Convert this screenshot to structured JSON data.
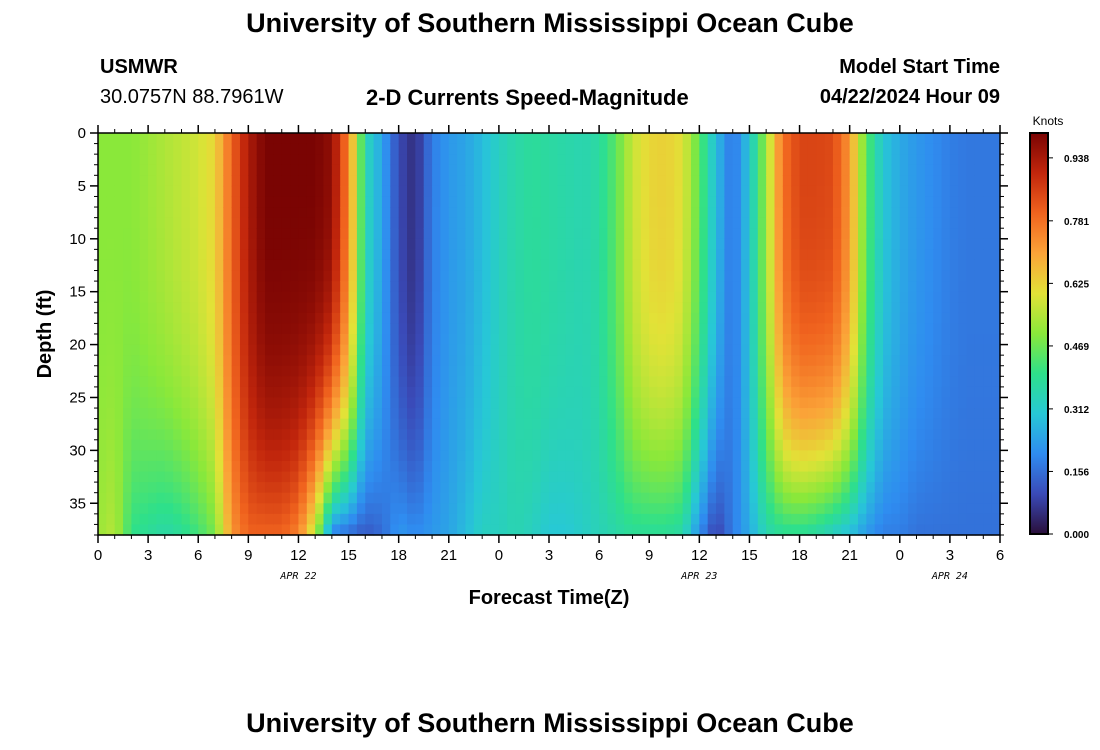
{
  "header": {
    "title": "University of Southern Mississippi Ocean Cube",
    "station": "USMWR",
    "coords": "30.0757N  88.7961W",
    "plot_title": "2-D Currents Speed-Magnitude",
    "model_label": "Model Start Time",
    "model_time": "04/22/2024 Hour 09"
  },
  "footer": {
    "title": "University of Southern Mississippi Ocean Cube"
  },
  "colors": {
    "colormap": [
      "#2a0f3a",
      "#3a4ab8",
      "#2f8cf0",
      "#27c8d6",
      "#2ee08a",
      "#8ae83a",
      "#e2e237",
      "#fba338",
      "#f0631e",
      "#c2260c",
      "#7a0403"
    ]
  },
  "chart_data": {
    "type": "heatmap",
    "xlabel": "Forecast Time(Z)",
    "ylabel": "Depth (ft)",
    "x_tick_labels": [
      "0",
      "3",
      "6",
      "9",
      "12",
      "15",
      "18",
      "21",
      "0",
      "3",
      "6",
      "9",
      "12",
      "15",
      "18",
      "21",
      "0",
      "3",
      "6"
    ],
    "x_range_hours": [
      0,
      54
    ],
    "y_ticks": [
      0,
      5,
      10,
      15,
      20,
      25,
      30,
      35
    ],
    "y_range": [
      0,
      38
    ],
    "date_labels": [
      {
        "label": "APR 22",
        "hour": 12
      },
      {
        "label": "APR 23",
        "hour": 36
      },
      {
        "label": "APR 24",
        "hour": 51
      }
    ],
    "colorbar": {
      "title": "Knots",
      "min": 0.0,
      "max": 1.0,
      "tick_labels": [
        "0.000",
        "0.156",
        "0.312",
        "0.469",
        "0.625",
        "0.781",
        "0.938"
      ],
      "tick_values": [
        0.0,
        0.156,
        0.312,
        0.469,
        0.625,
        0.781,
        0.938
      ]
    },
    "speed_columns_knots": {
      "hours": [
        0,
        1,
        2,
        3,
        4,
        5,
        6,
        7,
        8,
        9,
        10,
        11,
        12,
        13,
        14,
        15,
        16,
        17,
        18,
        19,
        20,
        21,
        22,
        23,
        24,
        25,
        26,
        27,
        28,
        29,
        30,
        31,
        32,
        33,
        34,
        35,
        36,
        37,
        38,
        39,
        40,
        41,
        42,
        43,
        44,
        45,
        46,
        47,
        48,
        49,
        50,
        51,
        52,
        53,
        54
      ],
      "surface": [
        0.5,
        0.5,
        0.5,
        0.52,
        0.54,
        0.56,
        0.58,
        0.62,
        0.8,
        0.93,
        1.0,
        1.0,
        1.0,
        1.0,
        0.97,
        0.75,
        0.35,
        0.24,
        0.1,
        0.05,
        0.18,
        0.22,
        0.24,
        0.28,
        0.33,
        0.36,
        0.38,
        0.37,
        0.36,
        0.35,
        0.37,
        0.45,
        0.57,
        0.62,
        0.63,
        0.6,
        0.45,
        0.28,
        0.16,
        0.3,
        0.52,
        0.78,
        0.85,
        0.85,
        0.84,
        0.72,
        0.45,
        0.3,
        0.25,
        0.22,
        0.2,
        0.18,
        0.17,
        0.17,
        0.17
      ],
      "bottom": [
        0.52,
        0.55,
        0.4,
        0.38,
        0.36,
        0.38,
        0.42,
        0.48,
        0.72,
        0.8,
        0.8,
        0.8,
        0.75,
        0.55,
        0.18,
        0.15,
        0.12,
        0.15,
        0.22,
        0.2,
        0.22,
        0.24,
        0.28,
        0.33,
        0.33,
        0.35,
        0.33,
        0.3,
        0.3,
        0.32,
        0.34,
        0.36,
        0.38,
        0.38,
        0.38,
        0.36,
        0.2,
        0.08,
        0.18,
        0.25,
        0.35,
        0.38,
        0.38,
        0.36,
        0.32,
        0.28,
        0.22,
        0.18,
        0.18,
        0.16,
        0.16,
        0.16,
        0.16,
        0.16,
        0.16
      ]
    }
  }
}
